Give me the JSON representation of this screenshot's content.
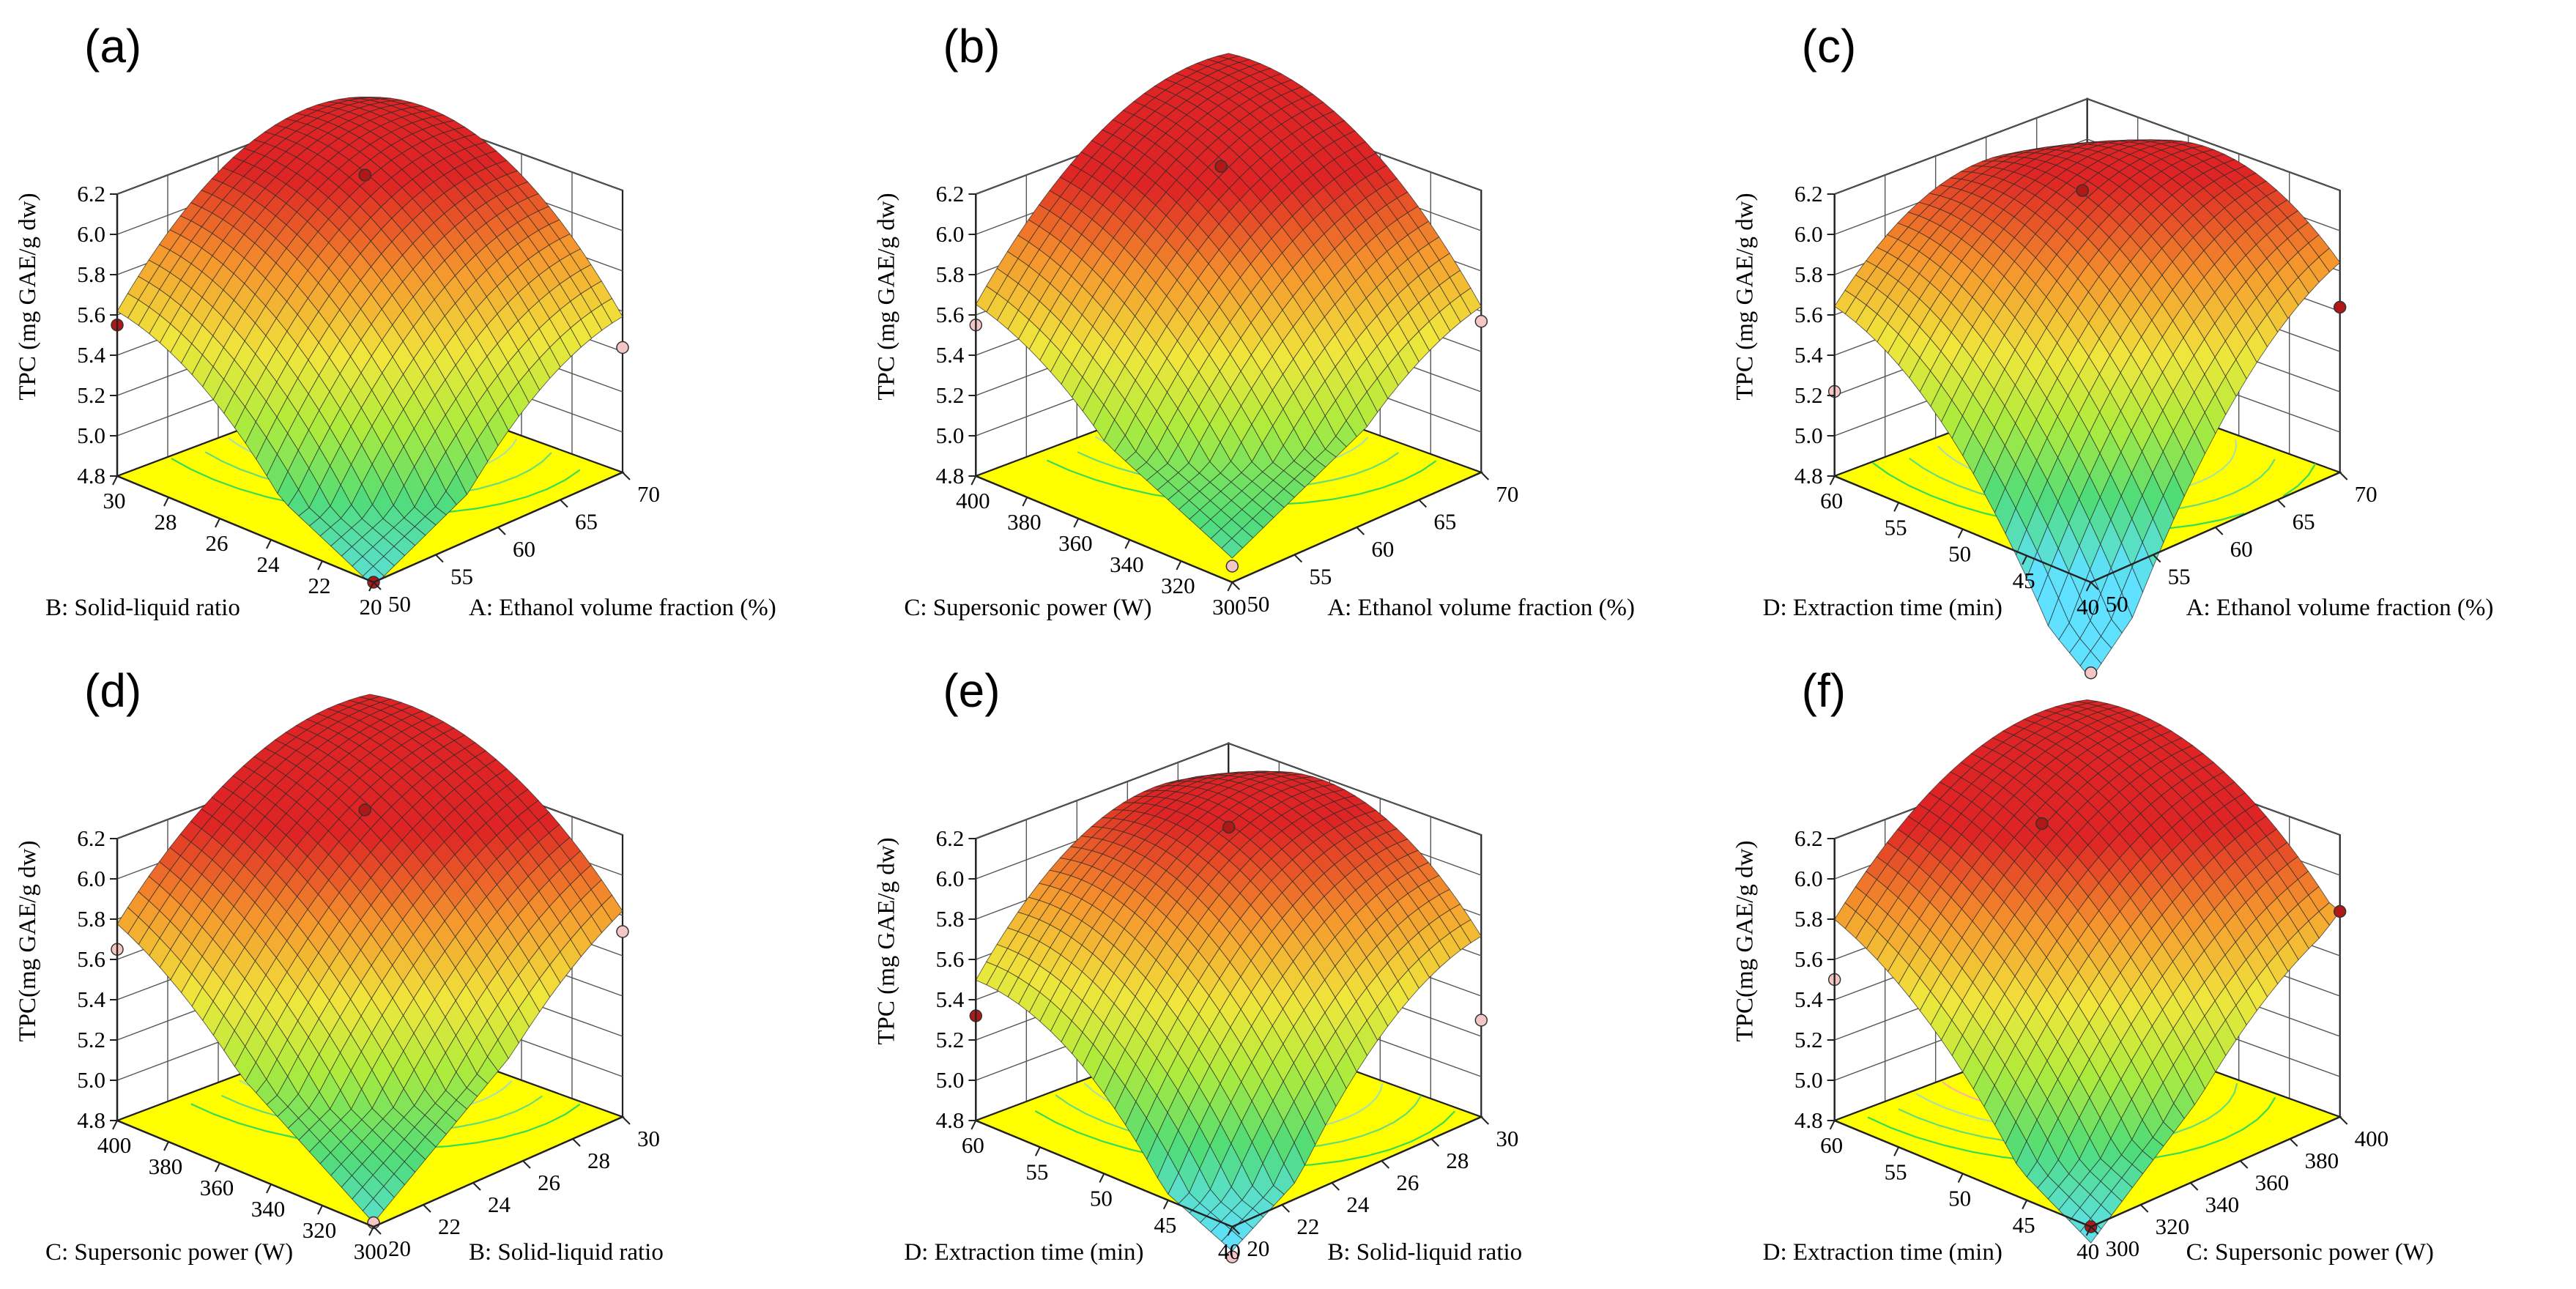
{
  "figure": {
    "zlabel_default": "TPC (mg GAE/g dw)"
  },
  "colors": {
    "floor": "#ffff00",
    "contour_inner": "#ff2a2a",
    "contour_outer": "#33dd55",
    "point_above": "#b01818",
    "point_below": "#f4c6c6"
  },
  "chart_data": [
    {
      "type": "surface3d",
      "panel": "(a)",
      "zlabel": "TPC (mg GAE/g dw)",
      "z_ticks": [
        "4.8",
        "5.0",
        "5.2",
        "5.4",
        "5.6",
        "5.8",
        "6.0",
        "6.2"
      ],
      "zlim": [
        4.8,
        6.2
      ],
      "x_axis": {
        "title": "B: Solid-liquid ratio",
        "ticks": [
          "30",
          "28",
          "26",
          "24",
          "22",
          "20"
        ],
        "range": [
          30,
          20
        ]
      },
      "y_axis": {
        "title": "A: Ethanol volume fraction (%)",
        "ticks": [
          "50",
          "55",
          "60",
          "65",
          "70"
        ],
        "range": [
          50,
          70
        ]
      },
      "surface": {
        "z_far": 5.42,
        "z_left": 5.45,
        "z_right": 5.45,
        "z_front": 4.78,
        "z_peak": 6.12,
        "peak_uv": [
          0.2,
          0.22
        ]
      },
      "design_points": [
        {
          "corner": "top",
          "z": 6.02,
          "above": true
        },
        {
          "corner": "left",
          "z": 5.55,
          "above": true
        },
        {
          "corner": "right",
          "z": 5.42,
          "above": false
        },
        {
          "corner": "bottom",
          "z": 4.8,
          "above": true
        }
      ]
    },
    {
      "type": "surface3d",
      "panel": "(b)",
      "zlabel": "TPC (mg GAE/g dw)",
      "z_ticks": [
        "4.8",
        "5.0",
        "5.2",
        "5.4",
        "5.6",
        "5.8",
        "6.0",
        "6.2"
      ],
      "zlim": [
        4.8,
        6.2
      ],
      "x_axis": {
        "title": "C: Supersonic power (W)",
        "ticks": [
          "400",
          "380",
          "360",
          "340",
          "320",
          "300"
        ],
        "range": [
          400,
          300
        ]
      },
      "y_axis": {
        "title": "A: Ethanol volume fraction (%)",
        "ticks": [
          "50",
          "55",
          "60",
          "65",
          "70"
        ],
        "range": [
          50,
          70
        ]
      },
      "surface": {
        "z_far": 5.7,
        "z_left": 5.55,
        "z_right": 5.58,
        "z_front": 4.92,
        "z_peak": 6.18,
        "peak_uv": [
          0.15,
          0.18
        ]
      },
      "design_points": [
        {
          "corner": "top",
          "z": 6.02,
          "above": true
        },
        {
          "corner": "left",
          "z": 5.55,
          "above": false
        },
        {
          "corner": "right",
          "z": 5.55,
          "above": false
        },
        {
          "corner": "bottom",
          "z": 4.88,
          "above": false
        }
      ]
    },
    {
      "type": "surface3d",
      "panel": "(c)",
      "zlabel": "TPC (mg GAE/g dw)",
      "z_ticks": [
        "4.8",
        "5.0",
        "5.2",
        "5.4",
        "5.6",
        "5.8",
        "6.0",
        "6.2"
      ],
      "zlim": [
        4.8,
        6.2
      ],
      "x_axis": {
        "title": "D: Extraction time (min)",
        "ticks": [
          "60",
          "55",
          "50",
          "45",
          "40"
        ],
        "range": [
          60,
          40
        ]
      },
      "y_axis": {
        "title": "A: Ethanol volume fraction (%)",
        "ticks": [
          "50",
          "55",
          "60",
          "65",
          "70"
        ],
        "range": [
          50,
          70
        ]
      },
      "surface": {
        "z_far": 5.08,
        "z_left": 5.35,
        "z_right": 5.6,
        "z_front": 4.32,
        "z_peak": 6.05,
        "peak_uv": [
          0.28,
          0.3
        ]
      },
      "design_points": [
        {
          "corner": "top",
          "z": 6.02,
          "above": true
        },
        {
          "corner": "left",
          "z": 5.22,
          "above": false
        },
        {
          "corner": "right",
          "z": 5.62,
          "above": true
        },
        {
          "corner": "bottom",
          "z": 4.35,
          "above": false
        }
      ]
    },
    {
      "type": "surface3d",
      "panel": "(d)",
      "zlabel": "TPC(mg GAE/g dw)",
      "z_ticks": [
        "4.8",
        "5.0",
        "5.2",
        "5.4",
        "5.6",
        "5.8",
        "6.0",
        "6.2"
      ],
      "zlim": [
        4.8,
        6.2
      ],
      "x_axis": {
        "title": "C: Supersonic power (W)",
        "ticks": [
          "400",
          "380",
          "360",
          "340",
          "320",
          "300"
        ],
        "range": [
          400,
          300
        ]
      },
      "y_axis": {
        "title": "B: Solid-liquid ratio",
        "ticks": [
          "20",
          "22",
          "24",
          "26",
          "28",
          "30"
        ],
        "range": [
          20,
          30
        ]
      },
      "surface": {
        "z_far": 5.8,
        "z_left": 5.7,
        "z_right": 5.78,
        "z_front": 4.82,
        "z_peak": 6.18,
        "peak_uv": [
          0.15,
          0.17
        ]
      },
      "design_points": [
        {
          "corner": "top",
          "z": 6.02,
          "above": true
        },
        {
          "corner": "left",
          "z": 5.65,
          "above": false
        },
        {
          "corner": "right",
          "z": 5.72,
          "above": false
        },
        {
          "corner": "bottom",
          "z": 4.82,
          "above": false
        }
      ]
    },
    {
      "type": "surface3d",
      "panel": "(e)",
      "zlabel": "TPC (mg GAE/g dw)",
      "z_ticks": [
        "4.8",
        "5.0",
        "5.2",
        "5.4",
        "5.6",
        "5.8",
        "6.0",
        "6.2"
      ],
      "zlim": [
        4.8,
        6.2
      ],
      "x_axis": {
        "title": "D: Extraction time (min)",
        "ticks": [
          "60",
          "55",
          "50",
          "45",
          "40"
        ],
        "range": [
          60,
          40
        ]
      },
      "y_axis": {
        "title": "B: Solid-liquid ratio",
        "ticks": [
          "20",
          "22",
          "24",
          "26",
          "28",
          "30"
        ],
        "range": [
          20,
          30
        ]
      },
      "surface": {
        "z_far": 5.18,
        "z_left": 5.28,
        "z_right": 5.48,
        "z_front": 4.68,
        "z_peak": 6.1,
        "peak_uv": [
          0.25,
          0.25
        ]
      },
      "design_points": [
        {
          "corner": "top",
          "z": 6.02,
          "above": true
        },
        {
          "corner": "left",
          "z": 5.32,
          "above": true
        },
        {
          "corner": "right",
          "z": 5.28,
          "above": false
        },
        {
          "corner": "bottom",
          "z": 4.65,
          "above": false
        }
      ]
    },
    {
      "type": "surface3d",
      "panel": "(f)",
      "zlabel": "TPC(mg GAE/g dw)",
      "z_ticks": [
        "4.8",
        "5.0",
        "5.2",
        "5.4",
        "5.6",
        "5.8",
        "6.0",
        "6.2"
      ],
      "zlim": [
        4.8,
        6.2
      ],
      "x_axis": {
        "title": "D: Extraction time (min)",
        "ticks": [
          "60",
          "55",
          "50",
          "45",
          "40"
        ],
        "range": [
          60,
          40
        ]
      },
      "y_axis": {
        "title": "C: Supersonic power (W)",
        "ticks": [
          "300",
          "320",
          "340",
          "360",
          "380",
          "400"
        ],
        "range": [
          300,
          400
        ]
      },
      "surface": {
        "z_far": 5.78,
        "z_left": 5.5,
        "z_right": 5.82,
        "z_front": 4.72,
        "z_peak": 6.17,
        "peak_uv": [
          0.14,
          0.32
        ]
      },
      "design_points": [
        {
          "corner": "top",
          "z": 6.02,
          "above": true
        },
        {
          "corner": "left",
          "z": 5.5,
          "above": false
        },
        {
          "corner": "right",
          "z": 5.82,
          "above": true
        },
        {
          "corner": "bottom",
          "z": 4.8,
          "above": true
        }
      ]
    }
  ]
}
